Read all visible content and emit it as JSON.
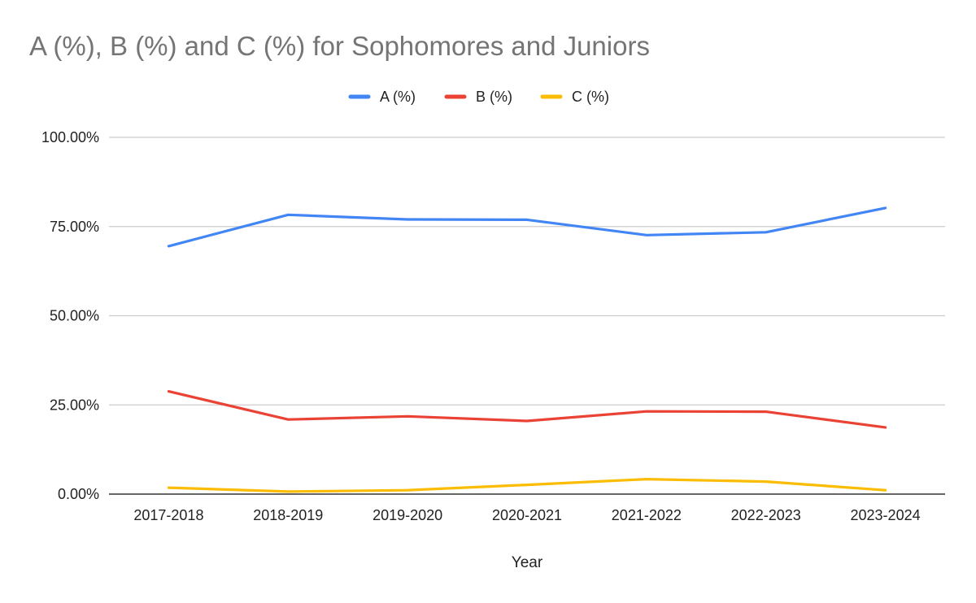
{
  "chart_data": {
    "type": "line",
    "title": "A (%), B (%) and C (%) for Sophomores and Juniors",
    "xlabel": "Year",
    "ylabel": "",
    "categories": [
      "2017-2018",
      "2018-2019",
      "2019-2020",
      "2020-2021",
      "2021-2022",
      "2022-2023",
      "2023-2024"
    ],
    "ylim": [
      0,
      100
    ],
    "yticks": [
      0,
      25,
      50,
      75,
      100
    ],
    "ytick_labels": [
      "0.00%",
      "25.00%",
      "50.00%",
      "75.00%",
      "100.00%"
    ],
    "grid": true,
    "legend_position": "top",
    "series": [
      {
        "name": "A (%)",
        "color": "#4285f4",
        "values": [
          69.5,
          78.3,
          77.0,
          76.9,
          72.6,
          73.4,
          80.2
        ]
      },
      {
        "name": "B (%)",
        "color": "#ea4335",
        "values": [
          28.8,
          20.9,
          21.8,
          20.5,
          23.2,
          23.1,
          18.7
        ]
      },
      {
        "name": "C (%)",
        "color": "#fbbc04",
        "values": [
          1.8,
          0.7,
          1.1,
          2.6,
          4.2,
          3.5,
          1.1
        ]
      }
    ]
  }
}
